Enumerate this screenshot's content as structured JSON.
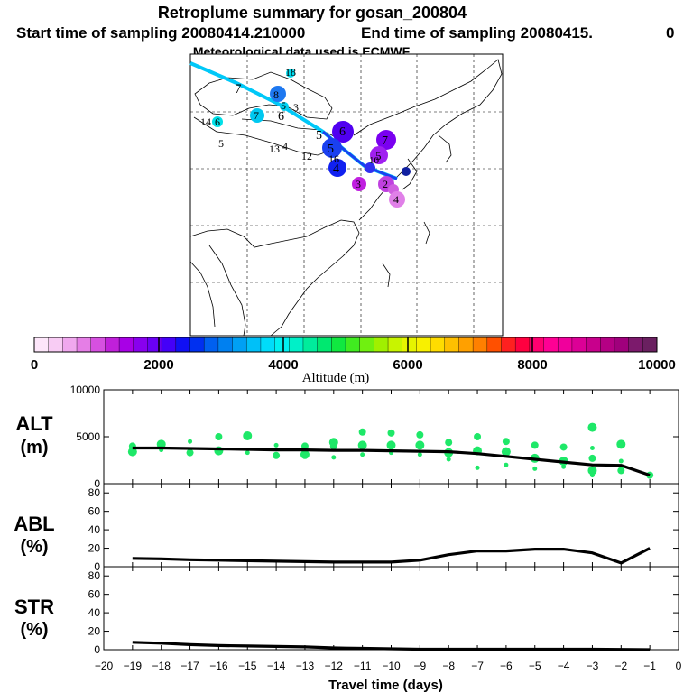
{
  "title": {
    "line1": "Retroplume summary for gosan_200804",
    "line2_start": "Start time of sampling 20080414.210000",
    "line2_end": "End time of sampling 20080415.",
    "line2_tail": "0",
    "line3": "Meteorological data used is ECMWF"
  },
  "colorbar": {
    "label": "Altitude (m)",
    "ticks": [
      "0",
      "2000",
      "4000",
      "6000",
      "8000",
      "10000"
    ],
    "colors": [
      "#fde6fa",
      "#f8ccf4",
      "#f0a8ee",
      "#e57ee6",
      "#d650e0",
      "#c020da",
      "#a800e6",
      "#8800ee",
      "#6a00f4",
      "#4400f8",
      "#1010f4",
      "#0030f0",
      "#0060f0",
      "#0080f0",
      "#00a0f4",
      "#00c0f8",
      "#00dcfa",
      "#00f0f0",
      "#00f0c8",
      "#00ec9c",
      "#00e870",
      "#10e840",
      "#40ec20",
      "#70f010",
      "#a0f000",
      "#c8f400",
      "#e6f400",
      "#f8f000",
      "#ffdc00",
      "#ffc000",
      "#ffa000",
      "#ff8000",
      "#ff5000",
      "#ff2020",
      "#ff0040",
      "#ff0070",
      "#ff0094",
      "#f0009c",
      "#dc0096",
      "#c8008c",
      "#b40084",
      "#a0007c",
      "#7c1a6c",
      "#6a2060"
    ]
  },
  "map_labels": [
    {
      "text": "18",
      "color": "#00d8f0"
    },
    {
      "text": "7",
      "color": "#00b4f0"
    },
    {
      "text": "8",
      "color": "#1e78f0"
    },
    {
      "text": "5",
      "color": "#00d0f0"
    },
    {
      "text": "3",
      "color": "#00e0f0"
    },
    {
      "text": "7",
      "color": "#00c8f0"
    },
    {
      "text": "6",
      "color": "#20c0f0"
    },
    {
      "text": "14",
      "color": "#00e0e8"
    },
    {
      "text": "6",
      "color": "#00e0e8"
    },
    {
      "text": "5",
      "color": "#00e0d0"
    },
    {
      "text": "13",
      "color": "#00e8c8"
    },
    {
      "text": "4",
      "color": "#00e8c8"
    },
    {
      "text": "12",
      "color": "#00e0e0"
    },
    {
      "text": "5",
      "color": "#0a50f0"
    },
    {
      "text": "6",
      "color": "#5000f0"
    },
    {
      "text": "5",
      "color": "#1040f0"
    },
    {
      "text": "7",
      "color": "#7a00f0"
    },
    {
      "text": "16",
      "color": "#1020f0"
    },
    {
      "text": "10",
      "color": "#3020f0"
    },
    {
      "text": "5",
      "color": "#c020e0"
    },
    {
      "text": "4",
      "color": "#1020f0"
    },
    {
      "text": "3",
      "color": "#d030e0"
    },
    {
      "text": "2",
      "color": "#c040e0"
    },
    {
      "text": "4",
      "color": "#e080e8"
    }
  ],
  "chart_data": [
    {
      "type": "line",
      "panel_label": [
        "ALT",
        "(m)"
      ],
      "ylim": [
        0,
        10000
      ],
      "y_ticks": [
        "0",
        "5000",
        "10000"
      ],
      "x": [
        -19,
        -18,
        -17,
        -16,
        -15,
        -14,
        -13,
        -12,
        -11,
        -10,
        -9,
        -8,
        -7,
        -6,
        -5,
        -4,
        -3,
        -2,
        -1
      ],
      "mean_line": [
        3800,
        3800,
        3750,
        3700,
        3650,
        3600,
        3600,
        3550,
        3550,
        3500,
        3450,
        3400,
        3200,
        2900,
        2600,
        2300,
        2000,
        1950,
        900
      ],
      "scatter_points": [
        [
          -19,
          3400
        ],
        [
          -19,
          4000
        ],
        [
          -18,
          3600
        ],
        [
          -18,
          4200
        ],
        [
          -17,
          3300
        ],
        [
          -17,
          4500
        ],
        [
          -16,
          3500
        ],
        [
          -16,
          5000
        ],
        [
          -15,
          3300
        ],
        [
          -15,
          5100
        ],
        [
          -14,
          3000
        ],
        [
          -14,
          4100
        ],
        [
          -13,
          3100
        ],
        [
          -13,
          4000
        ],
        [
          -12,
          2800
        ],
        [
          -12,
          4400
        ],
        [
          -12,
          4000
        ],
        [
          -11,
          3100
        ],
        [
          -11,
          4100
        ],
        [
          -11,
          5500
        ],
        [
          -10,
          3300
        ],
        [
          -10,
          4100
        ],
        [
          -10,
          5400
        ],
        [
          -9,
          3100
        ],
        [
          -9,
          4100
        ],
        [
          -9,
          5200
        ],
        [
          -8,
          2600
        ],
        [
          -8,
          3300
        ],
        [
          -8,
          4400
        ],
        [
          -7,
          1700
        ],
        [
          -7,
          3500
        ],
        [
          -7,
          5000
        ],
        [
          -6,
          2000
        ],
        [
          -6,
          3400
        ],
        [
          -6,
          4500
        ],
        [
          -5,
          1600
        ],
        [
          -5,
          2700
        ],
        [
          -5,
          4100
        ],
        [
          -4,
          1800
        ],
        [
          -4,
          2400
        ],
        [
          -4,
          3900
        ],
        [
          -3,
          900
        ],
        [
          -3,
          1400
        ],
        [
          -3,
          2700
        ],
        [
          -3,
          3800
        ],
        [
          -3,
          6000
        ],
        [
          -2,
          1400
        ],
        [
          -2,
          2400
        ],
        [
          -2,
          4200
        ],
        [
          -1,
          900
        ]
      ]
    },
    {
      "type": "line",
      "panel_label": [
        "ABL",
        "(%)"
      ],
      "ylim": [
        0,
        90
      ],
      "y_ticks": [
        "0",
        "20",
        "40",
        "60",
        "80"
      ],
      "x": [
        -19,
        -18,
        -17,
        -16,
        -15,
        -14,
        -13,
        -12,
        -11,
        -10,
        -9,
        -8,
        -7,
        -6,
        -5,
        -4,
        -3,
        -2,
        -1
      ],
      "values": [
        9,
        8.5,
        7.5,
        7,
        6.5,
        6,
        5.5,
        5,
        5,
        5,
        7,
        13,
        17,
        17,
        19,
        19,
        15,
        4,
        20
      ]
    },
    {
      "type": "line",
      "panel_label": [
        "STR",
        "(%)"
      ],
      "ylim": [
        0,
        90
      ],
      "y_ticks": [
        "0",
        "20",
        "40",
        "60",
        "80"
      ],
      "x": [
        -19,
        -18,
        -17,
        -16,
        -15,
        -14,
        -13,
        -12,
        -11,
        -10,
        -9,
        -8,
        -7,
        -6,
        -5,
        -4,
        -3,
        -2,
        -1
      ],
      "values": [
        8,
        7,
        5.5,
        4.5,
        4,
        3.5,
        3,
        2,
        1.5,
        1,
        0.5,
        0.5,
        0.5,
        0.5,
        0.5,
        0.5,
        0.5,
        0.3,
        0
      ],
      "xlabel": "Travel time (days)",
      "x_ticks": [
        "−20",
        "−19",
        "−18",
        "−17",
        "−16",
        "−15",
        "−14",
        "−13",
        "−12",
        "−11",
        "−10",
        "−9",
        "−8",
        "−7",
        "−6",
        "−5",
        "−4",
        "−3",
        "−2",
        "−1",
        "0"
      ],
      "xlim": [
        -20,
        0
      ]
    }
  ]
}
